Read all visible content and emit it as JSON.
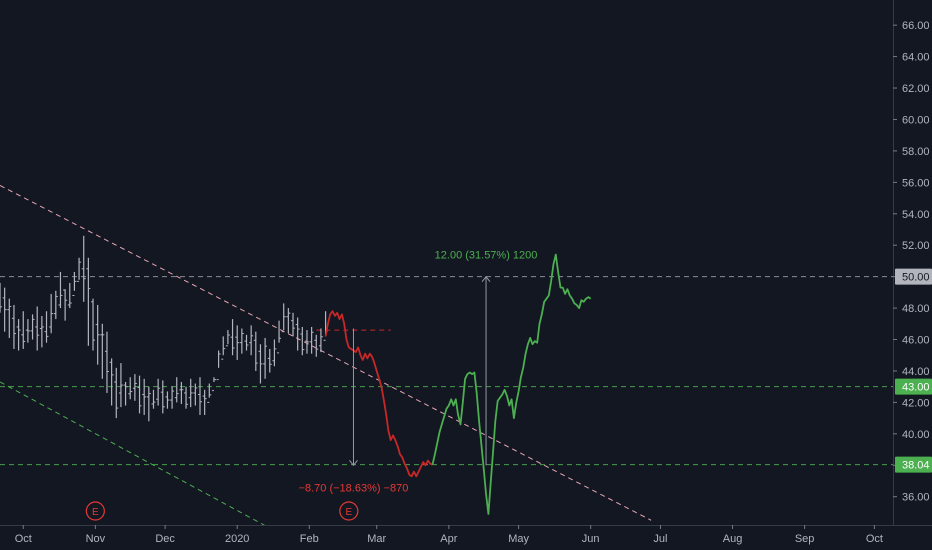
{
  "chart_data": {
    "type": "line",
    "y_axis": {
      "ticks": [
        "66.00",
        "64.00",
        "62.00",
        "60.00",
        "58.00",
        "56.00",
        "54.00",
        "52.00",
        "50.00",
        "48.00",
        "46.00",
        "44.00",
        "42.00",
        "40.00",
        "38.00",
        "36.00"
      ],
      "tick_values": [
        66,
        64,
        62,
        60,
        58,
        56,
        54,
        52,
        50,
        48,
        46,
        44,
        42,
        40,
        38,
        36
      ],
      "ylim": [
        34.2,
        67.6
      ],
      "position": "right"
    },
    "x_axis": {
      "ticks": [
        "Oct",
        "Nov",
        "Dec",
        "2020",
        "Feb",
        "Mar",
        "Apr",
        "May",
        "Jun",
        "Jul",
        "Aug",
        "Sep",
        "Oct"
      ],
      "tick_days": [
        0,
        31,
        61,
        92,
        123,
        152,
        183,
        213,
        244,
        274,
        305,
        336,
        366
      ],
      "xlim": [
        -10,
        374
      ]
    },
    "price_labels": [
      {
        "text": "50.00",
        "value": 50.0,
        "color": "#b2b5be",
        "text_color": "#131722"
      },
      {
        "text": "43.00",
        "value": 43.0,
        "color": "#4caf50",
        "text_color": "#ffffff"
      },
      {
        "text": "38.04",
        "value": 38.04,
        "color": "#4caf50",
        "text_color": "#ffffff"
      }
    ],
    "horizontal_lines": [
      {
        "value": 50.0,
        "color": "#9598a1"
      },
      {
        "value": 43.0,
        "color": "#4caf50"
      },
      {
        "value": 38.04,
        "color": "#4caf50"
      }
    ],
    "trend_lines": [
      {
        "x": [
          -10,
          270
        ],
        "y": [
          55.8,
          34.5
        ],
        "color": "#e6a6b4"
      },
      {
        "x": [
          -10,
          106
        ],
        "y": [
          43.3,
          34.0
        ],
        "color": "#4caf50"
      }
    ],
    "resistance_line": {
      "x": [
        126,
        158
      ],
      "y": [
        46.6,
        46.6
      ],
      "color": "#c62828"
    },
    "ohlc": {
      "color": "#b2b5be",
      "x": [
        -10,
        -8,
        -6,
        -4,
        -2,
        0,
        2,
        4,
        6,
        8,
        10,
        12,
        14,
        16,
        18,
        20,
        22,
        24,
        26,
        28,
        30,
        32,
        34,
        36,
        38,
        40,
        42,
        44,
        46,
        48,
        50,
        52,
        54,
        56,
        58,
        60,
        62,
        64,
        66,
        68,
        70,
        72,
        74,
        76,
        78,
        80,
        82,
        84,
        86,
        88,
        90,
        92,
        94,
        96,
        98,
        100,
        102,
        104,
        106,
        108,
        110,
        112,
        114,
        116,
        118,
        120,
        122,
        124,
        126,
        128,
        130
      ],
      "high": [
        49.6,
        49.3,
        48.6,
        48.2,
        47.3,
        47.8,
        47.3,
        47.6,
        48.1,
        47.5,
        47.8,
        48.9,
        49.1,
        50.3,
        49.2,
        49.6,
        50.3,
        51.2,
        52.6,
        51.2,
        48.6,
        48.2,
        47.0,
        46.5,
        44.8,
        44.2,
        44.5,
        43.3,
        43.6,
        43.8,
        43.7,
        43.5,
        43.0,
        42.8,
        43.5,
        43.4,
        42.7,
        43.0,
        43.6,
        43.3,
        43.0,
        43.5,
        43.2,
        43.6,
        42.8,
        43.2,
        43.6,
        45.3,
        46.2,
        46.6,
        47.3,
        46.9,
        46.7,
        46.3,
        46.9,
        46.5,
        45.7,
        46.1,
        45.4,
        46.0,
        47.2,
        48.3,
        48.0,
        47.7,
        47.4,
        46.8,
        46.6,
        46.8,
        46.3,
        46.7,
        47.8
      ],
      "low": [
        47.7,
        46.5,
        46.1,
        45.4,
        45.3,
        45.4,
        45.8,
        46.0,
        45.3,
        45.5,
        45.8,
        46.4,
        47.3,
        48.0,
        47.2,
        48.0,
        49.1,
        49.8,
        48.4,
        45.6,
        45.3,
        44.4,
        43.5,
        42.6,
        41.8,
        41.0,
        41.7,
        41.8,
        42.2,
        42.1,
        41.3,
        41.2,
        40.8,
        41.6,
        41.8,
        41.3,
        41.6,
        41.6,
        42.0,
        41.9,
        41.6,
        41.7,
        41.8,
        41.2,
        41.2,
        42.3,
        43.3,
        44.2,
        45.0,
        45.7,
        45.0,
        44.7,
        45.1,
        45.3,
        45.0,
        44.0,
        43.2,
        43.5,
        43.9,
        44.3,
        45.8,
        46.6,
        46.4,
        46.2,
        45.3,
        45.0,
        45.1,
        45.1,
        44.9,
        45.2,
        46.2
      ]
    },
    "projection_red": {
      "color": "#c62828",
      "x": [
        130,
        131,
        132,
        133,
        134,
        135,
        136,
        137,
        138,
        139,
        140,
        141,
        142,
        143,
        144,
        145,
        146,
        147,
        148,
        149,
        150,
        151,
        152,
        153,
        154,
        155,
        156,
        157,
        158,
        159,
        160,
        161,
        162,
        163,
        164,
        165,
        166,
        167,
        168,
        169,
        170,
        171,
        172,
        173,
        174,
        175,
        176
      ],
      "y": [
        46.2,
        47.0,
        47.6,
        47.8,
        47.5,
        47.7,
        47.3,
        47.6,
        47.0,
        46.0,
        45.5,
        45.4,
        45.3,
        45.2,
        45.5,
        45.0,
        44.7,
        45.1,
        44.8,
        45.1,
        44.9,
        44.5,
        44.0,
        43.5,
        43.0,
        42.2,
        41.3,
        40.2,
        39.6,
        39.9,
        39.6,
        39.2,
        38.7,
        38.5,
        38.1,
        37.8,
        37.4,
        37.3,
        37.6,
        37.3,
        37.6,
        37.9,
        38.2,
        38.0,
        38.3,
        38.1,
        38.04
      ]
    },
    "projection_green": {
      "color": "#4caf50",
      "x": [
        176,
        177,
        178,
        179,
        180,
        181,
        182,
        183,
        184,
        185,
        186,
        187,
        188,
        189,
        190,
        191,
        192,
        193,
        194,
        195,
        196,
        197,
        198,
        199,
        200,
        201,
        202,
        203,
        204,
        205,
        206,
        207,
        208,
        209,
        210,
        211,
        212,
        213,
        214,
        215,
        216,
        217,
        218,
        219,
        220,
        221,
        222,
        223,
        224,
        225,
        226,
        227,
        228,
        229,
        230,
        231,
        232,
        233,
        234,
        235,
        236,
        237,
        238,
        239,
        240,
        241,
        242,
        243,
        244
      ],
      "y": [
        38.04,
        38.7,
        39.4,
        40.1,
        40.6,
        41.1,
        41.6,
        41.8,
        42.2,
        41.8,
        42.2,
        41.2,
        40.6,
        42.0,
        43.5,
        43.8,
        43.9,
        43.8,
        43.9,
        42.6,
        40.8,
        39.3,
        37.8,
        36.2,
        34.9,
        36.9,
        38.8,
        40.8,
        42.1,
        42.3,
        42.5,
        42.8,
        42.4,
        41.8,
        42.2,
        41.0,
        42.0,
        42.7,
        43.6,
        44.2,
        45.1,
        45.7,
        46.1,
        45.7,
        45.9,
        45.8,
        47.0,
        47.6,
        48.4,
        48.6,
        48.8,
        49.7,
        50.8,
        51.4,
        50.3,
        49.3,
        49.3,
        48.9,
        49.2,
        48.8,
        48.6,
        48.3,
        48.2,
        48.0,
        48.5,
        48.4,
        48.6,
        48.7,
        48.6
      ]
    },
    "measurements": [
      {
        "label": "−8.70 (−18.63%) −870",
        "x": 142,
        "from": 46.7,
        "to": 38.0,
        "color": "#e53935",
        "label_pos": "below"
      },
      {
        "label": "12.00 (31.57%) 1200",
        "x": 199,
        "from": 38.0,
        "to": 50.0,
        "color": "#4caf50",
        "label_pos": "above"
      }
    ],
    "event_markers": [
      {
        "label": "E",
        "x": 31
      },
      {
        "label": "E",
        "x": 140
      }
    ],
    "grid": false,
    "legend": "none"
  }
}
